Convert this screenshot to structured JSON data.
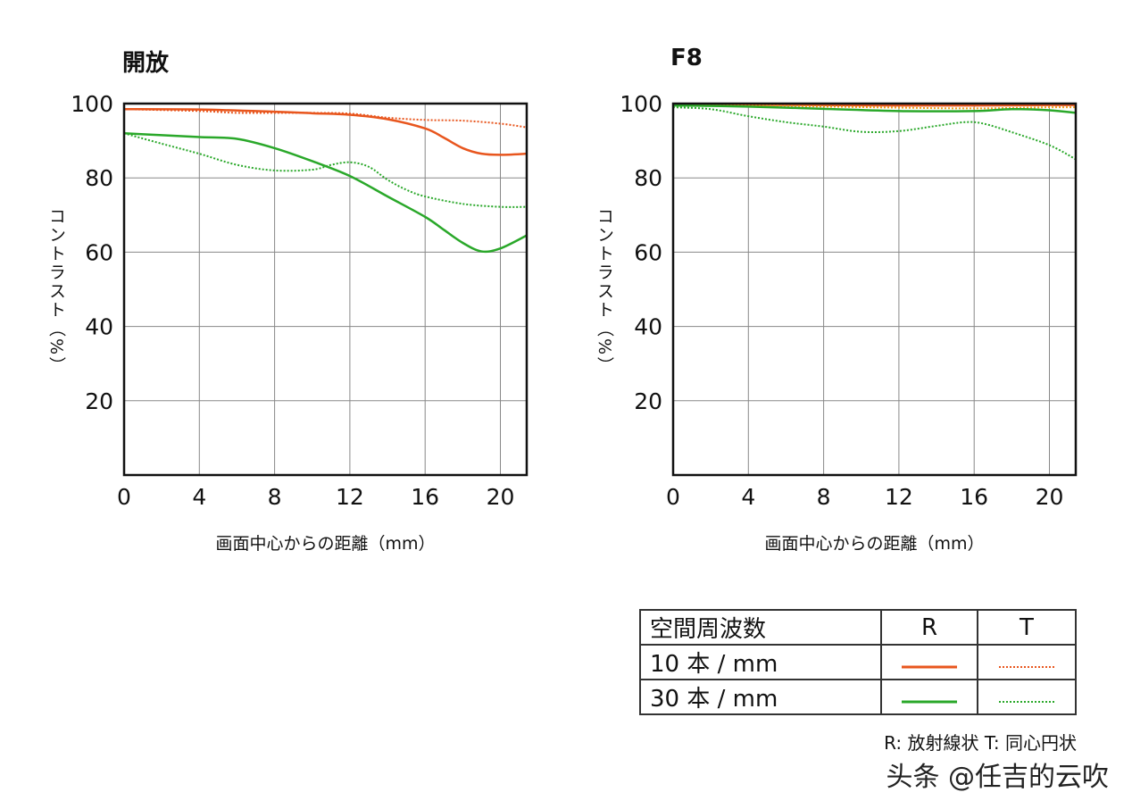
{
  "chart_data": [
    {
      "type": "line",
      "title": "開放",
      "xlabel": "画面中心からの距離（mm）",
      "ylabel": "コントラスト（%）",
      "xlim": [
        0,
        21.4
      ],
      "ylim": [
        0,
        100
      ],
      "xticks": [
        0,
        4,
        8,
        12,
        16,
        20
      ],
      "yticks": [
        20,
        40,
        60,
        80,
        100
      ],
      "grid": true,
      "series": [
        {
          "name": "10本/mm R",
          "color": "#e8561e",
          "style": "solid",
          "x": [
            0,
            4,
            8,
            10,
            12,
            14,
            16,
            17,
            18,
            19,
            20,
            21.4
          ],
          "y": [
            98.5,
            98.4,
            97.8,
            97.4,
            97.0,
            95.8,
            93.3,
            90.8,
            88.0,
            86.5,
            86.2,
            86.5
          ]
        },
        {
          "name": "10本/mm T",
          "color": "#e8561e",
          "style": "dotted",
          "x": [
            0,
            4,
            6,
            8,
            10,
            12,
            14,
            16,
            18,
            20,
            21.4
          ],
          "y": [
            98.5,
            98.0,
            97.5,
            97.5,
            97.5,
            97.3,
            96.2,
            95.6,
            95.4,
            94.6,
            93.6
          ]
        },
        {
          "name": "30本/mm R",
          "color": "#2aa82a",
          "style": "solid",
          "x": [
            0,
            2,
            4,
            6,
            8,
            10,
            12,
            14,
            16,
            17,
            18,
            19,
            20,
            21.4
          ],
          "y": [
            92.0,
            91.5,
            91.0,
            90.5,
            88.0,
            84.5,
            80.5,
            75.0,
            69.5,
            66.0,
            62.5,
            60.2,
            61.0,
            64.5
          ]
        },
        {
          "name": "30本/mm T",
          "color": "#2aa82a",
          "style": "dotted",
          "x": [
            0,
            2,
            4,
            6,
            8,
            10,
            11,
            12,
            13,
            14,
            15,
            16,
            18,
            20,
            21.4
          ],
          "y": [
            92.0,
            89.2,
            86.5,
            83.5,
            82.0,
            82.2,
            83.5,
            84.2,
            83.0,
            79.5,
            76.8,
            75.0,
            73.0,
            72.2,
            72.2
          ]
        }
      ]
    },
    {
      "type": "line",
      "title": "F8",
      "xlabel": "画面中心からの距離（mm）",
      "ylabel": "コントラスト（%）",
      "xlim": [
        0,
        21.4
      ],
      "ylim": [
        0,
        100
      ],
      "xticks": [
        0,
        4,
        8,
        12,
        16,
        20
      ],
      "yticks": [
        20,
        40,
        60,
        80,
        100
      ],
      "grid": true,
      "series": [
        {
          "name": "10本/mm R",
          "color": "#e8561e",
          "style": "solid",
          "x": [
            0,
            4,
            8,
            12,
            16,
            20,
            21.4
          ],
          "y": [
            99.7,
            99.7,
            99.6,
            99.5,
            99.5,
            99.6,
            99.6
          ]
        },
        {
          "name": "10本/mm T",
          "color": "#f0a020",
          "style": "dotted",
          "x": [
            0,
            4,
            8,
            12,
            16,
            20,
            21.4
          ],
          "y": [
            99.7,
            99.5,
            99.2,
            98.9,
            98.7,
            99.0,
            99.0
          ]
        },
        {
          "name": "30本/mm R",
          "color": "#2aa82a",
          "style": "solid",
          "x": [
            0,
            4,
            8,
            12,
            16,
            18,
            20,
            21.4
          ],
          "y": [
            99.5,
            99.2,
            98.6,
            98.0,
            98.0,
            98.5,
            98.2,
            97.5
          ]
        },
        {
          "name": "30本/mm T",
          "color": "#2aa82a",
          "style": "dotted",
          "x": [
            0,
            2,
            4,
            6,
            8,
            10,
            12,
            14,
            15.5,
            16.5,
            18,
            20,
            21.4
          ],
          "y": [
            99.0,
            98.5,
            96.6,
            95.0,
            93.8,
            92.4,
            92.6,
            94.0,
            95.0,
            94.6,
            92.3,
            88.8,
            85.0
          ]
        }
      ]
    }
  ],
  "legend": {
    "header": "空間周波数",
    "col_r": "R",
    "col_t": "T",
    "row1": "10 本 / mm",
    "row2": "30 本 / mm",
    "color_10": "#e8561e",
    "color_30": "#2aa82a"
  },
  "note": "R: 放射線状  T: 同心円状",
  "watermark": "头条 @任吉的云吹"
}
